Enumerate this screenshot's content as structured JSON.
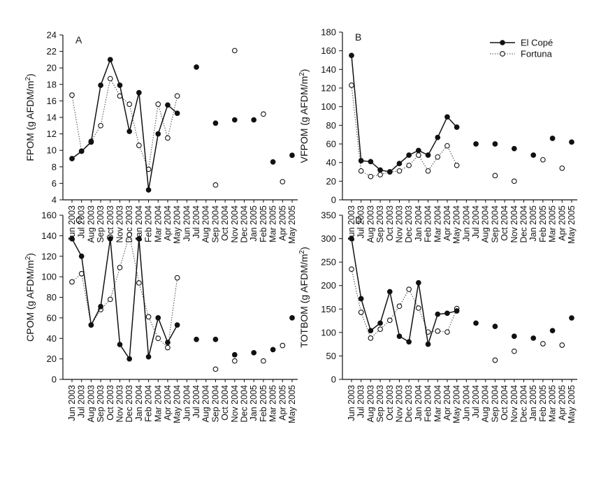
{
  "months": [
    "Jun 2003",
    "Jul 2003",
    "Aug 2003",
    "Sep 2003",
    "Oct 2003",
    "Nov 2003",
    "Dec 2003",
    "Jan 2004",
    "Feb 2004",
    "Mar 2004",
    "Apr 2004",
    "May 2004",
    "Jun 2004",
    "Jul 2004",
    "Aug 2004",
    "Sep 2004",
    "Oct 2004",
    "Nov 2004",
    "Dec 2004",
    "Jan 2005",
    "Feb 2005",
    "Mar 2005",
    "Apr 2005",
    "May 2005"
  ],
  "legend": {
    "el_cope": "El Copé",
    "fortuna": "Fortuna",
    "placement": "top-right of panel B"
  },
  "chart_data": [
    {
      "type": "line",
      "panel": "A",
      "ylabel": "FPOM (g AFDM/m2)",
      "ylim": [
        4,
        24
      ],
      "yticks": [
        4,
        6,
        8,
        10,
        12,
        14,
        16,
        18,
        20,
        22,
        24
      ],
      "connected_through": "May 2004",
      "series": [
        {
          "name": "El Copé",
          "marker": "filled",
          "line": "solid",
          "values": [
            9.0,
            9.9,
            11.0,
            17.9,
            21.0,
            17.9,
            12.3,
            17.0,
            5.2,
            12.0,
            15.5,
            14.5,
            null,
            20.1,
            null,
            13.3,
            null,
            13.7,
            null,
            13.7,
            null,
            8.6,
            null,
            9.4
          ]
        },
        {
          "name": "Fortuna",
          "marker": "open",
          "line": "dotted",
          "values": [
            16.7,
            9.9,
            11.1,
            13.0,
            18.7,
            16.6,
            15.6,
            10.6,
            7.7,
            15.6,
            11.5,
            16.6,
            null,
            null,
            null,
            5.8,
            null,
            22.1,
            null,
            null,
            14.4,
            null,
            6.2,
            null
          ]
        }
      ]
    },
    {
      "type": "line",
      "panel": "B",
      "ylabel": "VFPOM (g AFDM/m2)",
      "ylim": [
        0,
        180
      ],
      "yticks": [
        0,
        20,
        40,
        60,
        80,
        100,
        120,
        140,
        160,
        180
      ],
      "connected_through": "May 2004",
      "series": [
        {
          "name": "El Copé",
          "marker": "filled",
          "line": "solid",
          "values": [
            155,
            42,
            41,
            32,
            30,
            39,
            48,
            53,
            48,
            67,
            89,
            78,
            null,
            60,
            null,
            60,
            null,
            55,
            null,
            48,
            null,
            66,
            null,
            62
          ]
        },
        {
          "name": "Fortuna",
          "marker": "open",
          "line": "dotted",
          "values": [
            123,
            31,
            25,
            27,
            30,
            31,
            37,
            48,
            31,
            46,
            58,
            37,
            null,
            null,
            null,
            26,
            null,
            20,
            null,
            null,
            43,
            null,
            34,
            null
          ]
        }
      ]
    },
    {
      "type": "line",
      "panel": "C",
      "ylabel": "CPOM (g AFDM/m2)",
      "ylim": [
        0,
        160
      ],
      "yticks": [
        0,
        20,
        40,
        60,
        80,
        100,
        120,
        140,
        160
      ],
      "connected_through": "May 2004",
      "series": [
        {
          "name": "El Copé",
          "marker": "filled",
          "line": "solid",
          "values": [
            137,
            120,
            53,
            71,
            137,
            34,
            20,
            137,
            22,
            60,
            36,
            53,
            null,
            39,
            null,
            39,
            null,
            24,
            null,
            26,
            null,
            29,
            null,
            60
          ]
        },
        {
          "name": "Fortuna",
          "marker": "open",
          "line": "dotted",
          "values": [
            95,
            103,
            53,
            68,
            78,
            109,
            141,
            94,
            61,
            40,
            31,
            99,
            null,
            null,
            null,
            10,
            null,
            18,
            null,
            null,
            18,
            null,
            33,
            null
          ]
        }
      ]
    },
    {
      "type": "line",
      "panel": "D",
      "ylabel": "TOTBOM (g AFDM/m2)",
      "ylim": [
        0,
        350
      ],
      "yticks": [
        0,
        50,
        100,
        150,
        200,
        250,
        300,
        350
      ],
      "connected_through": "May 2004",
      "series": [
        {
          "name": "El Copé",
          "marker": "filled",
          "line": "solid",
          "values": [
            300,
            172,
            104,
            120,
            187,
            92,
            80,
            206,
            75,
            139,
            141,
            146,
            null,
            120,
            null,
            113,
            null,
            92,
            null,
            88,
            null,
            104,
            null,
            131
          ]
        },
        {
          "name": "Fortuna",
          "marker": "open",
          "line": "dotted",
          "values": [
            235,
            143,
            88,
            107,
            126,
            156,
            192,
            152,
            101,
            103,
            101,
            151,
            null,
            null,
            null,
            41,
            null,
            60,
            null,
            null,
            76,
            null,
            73,
            null
          ]
        }
      ]
    }
  ]
}
